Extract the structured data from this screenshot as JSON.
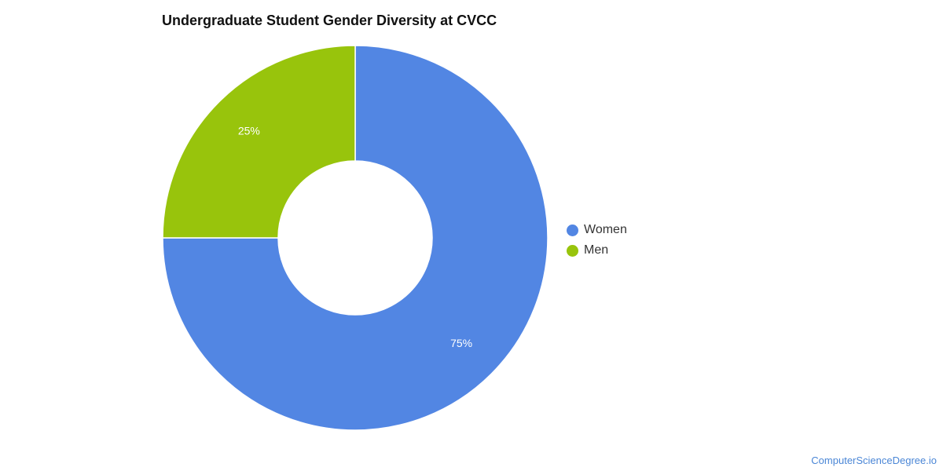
{
  "chart_data": {
    "type": "pie",
    "title": "Undergraduate Student Gender Diversity at CVCC",
    "categories": [
      "Women",
      "Men"
    ],
    "values": [
      75,
      25
    ],
    "data_labels": [
      "75%",
      "25%"
    ],
    "colors": [
      "#5286e3",
      "#98c40c"
    ],
    "donut": true,
    "legend_position": "right"
  },
  "watermark": "ComputerScienceDegree.io"
}
